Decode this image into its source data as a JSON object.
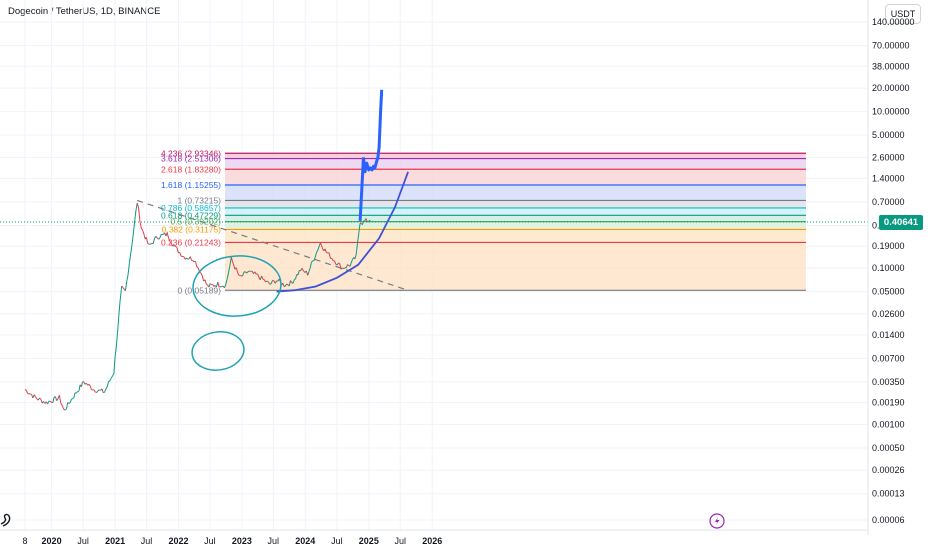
{
  "header": {
    "title": "Dogecoin / TetherUS, 1D, BINANCE",
    "currency": "USDT"
  },
  "price_badge": "0.40641",
  "colors": {
    "up": "#089981",
    "down": "#f23645",
    "forecast": "#2962ff",
    "annotation": "#1fa3b3",
    "grid": "#f0f3fa",
    "price_line": "#089981"
  },
  "icons": [
    "dragon-icon",
    "lightning-icon"
  ],
  "chart_data": {
    "type": "line",
    "y_scale": "log",
    "y_ticks": [
      "140.00000",
      "70.00000",
      "38.00000",
      "20.00000",
      "10.00000",
      "5.00000",
      "2.60000",
      "1.40000",
      "0.70000",
      "0.35000",
      "0.19000",
      "0.10000",
      "0.05000",
      "0.02600",
      "0.01400",
      "0.00700",
      "0.00350",
      "0.00190",
      "0.00100",
      "0.00050",
      "0.00026",
      "0.00013",
      "0.00006"
    ],
    "x_ticks": [
      "8",
      "2020",
      "Jul",
      "2021",
      "Jul",
      "2022",
      "Jul",
      "2023",
      "Jul",
      "2024",
      "Jul",
      "2025",
      "Jul",
      "2026"
    ],
    "fib_levels": [
      {
        "label": "4.236 (2.93346)",
        "value": 2.93346,
        "color": "#c2185b"
      },
      {
        "label": "3.618 (2.51306)",
        "value": 2.51306,
        "color": "#9c27b0"
      },
      {
        "label": "2.618 (1.83280)",
        "value": 1.8328,
        "color": "#f23645"
      },
      {
        "label": "1.618 (1.15255)",
        "value": 1.15255,
        "color": "#2962ff"
      },
      {
        "label": "1 (0.73215)",
        "value": 0.73215,
        "color": "#787b86"
      },
      {
        "label": "0.786 (0.58657)",
        "value": 0.58657,
        "color": "#00bcd4"
      },
      {
        "label": "0.618 (0.47229)",
        "value": 0.47229,
        "color": "#089981"
      },
      {
        "label": "0.5 (0.39202)",
        "value": 0.39202,
        "color": "#4caf50"
      },
      {
        "label": "0.382 (0.31175)",
        "value": 0.31175,
        "color": "#ff9800"
      },
      {
        "label": "0.236 (0.21243)",
        "value": 0.21243,
        "color": "#f23645"
      },
      {
        "label": "0 (0.05189)",
        "value": 0.05189,
        "color": "#787b86"
      }
    ],
    "series": [
      {
        "x": [
          "2019-08-01",
          "2019-10-01",
          "2019-12-01",
          "2020-02-15",
          "2020-03-13",
          "2020-05-01",
          "2020-07-05",
          "2020-09-01",
          "2020-11-01",
          "2020-12-25",
          "2021-01-29",
          "2021-02-08",
          "2021-03-01",
          "2021-04-15",
          "2021-05-08",
          "2021-06-01",
          "2021-07-15",
          "2021-09-01",
          "2021-10-28",
          "2021-12-15",
          "2022-02-01",
          "2022-04-01",
          "2022-06-18",
          "2022-08-15",
          "2022-09-30",
          "2022-11-01",
          "2022-12-20",
          "2023-02-05",
          "2023-04-01",
          "2023-06-10",
          "2023-07-20",
          "2023-09-01",
          "2023-10-15",
          "2023-12-05",
          "2024-01-15",
          "2024-03-28",
          "2024-05-01",
          "2024-06-10",
          "2024-08-01",
          "2024-09-15",
          "2024-10-20",
          "2024-11-12",
          "2024-11-25",
          "2024-12-15",
          "2025-01-10"
        ],
        "y": [
          0.0028,
          0.0022,
          0.0019,
          0.0022,
          0.0015,
          0.0022,
          0.0035,
          0.0028,
          0.0026,
          0.0047,
          0.035,
          0.055,
          0.05,
          0.27,
          0.7,
          0.33,
          0.19,
          0.25,
          0.27,
          0.18,
          0.14,
          0.13,
          0.058,
          0.062,
          0.06,
          0.13,
          0.075,
          0.09,
          0.08,
          0.062,
          0.07,
          0.061,
          0.065,
          0.095,
          0.085,
          0.21,
          0.16,
          0.13,
          0.1,
          0.11,
          0.14,
          0.4,
          0.38,
          0.4,
          0.41
        ]
      },
      {
        "name": "",
        "x": [
          "2024-12-01",
          "2024-12-10",
          "2024-12-20",
          "2025-01-01",
          "2025-01-10",
          "2025-01-20",
          "2025-01-28",
          "2025-02-05",
          "2025-02-15",
          "2025-02-22",
          "2025-03-01",
          "2025-03-10",
          "2025-03-16"
        ],
        "y": [
          2.6,
          1.7,
          2.2,
          1.8,
          1.9,
          1.8,
          2.0,
          1.9,
          2.3,
          2.6,
          3.5,
          10.0,
          19.0
        ]
      },
      {
        "name": "",
        "x": [
          "2023-07-20",
          "2023-11-01",
          "2024-03-01",
          "2024-07-01",
          "2024-11-01",
          "2025-03-01",
          "2025-06-01",
          "2025-08-15"
        ],
        "y": [
          0.05,
          0.052,
          0.058,
          0.075,
          0.11,
          0.24,
          0.6,
          1.7
        ]
      },
      {
        "name": "",
        "x": [
          "2021-05-08",
          "2025-08-15"
        ],
        "y": [
          0.73215,
          0.05189
        ]
      }
    ]
  }
}
